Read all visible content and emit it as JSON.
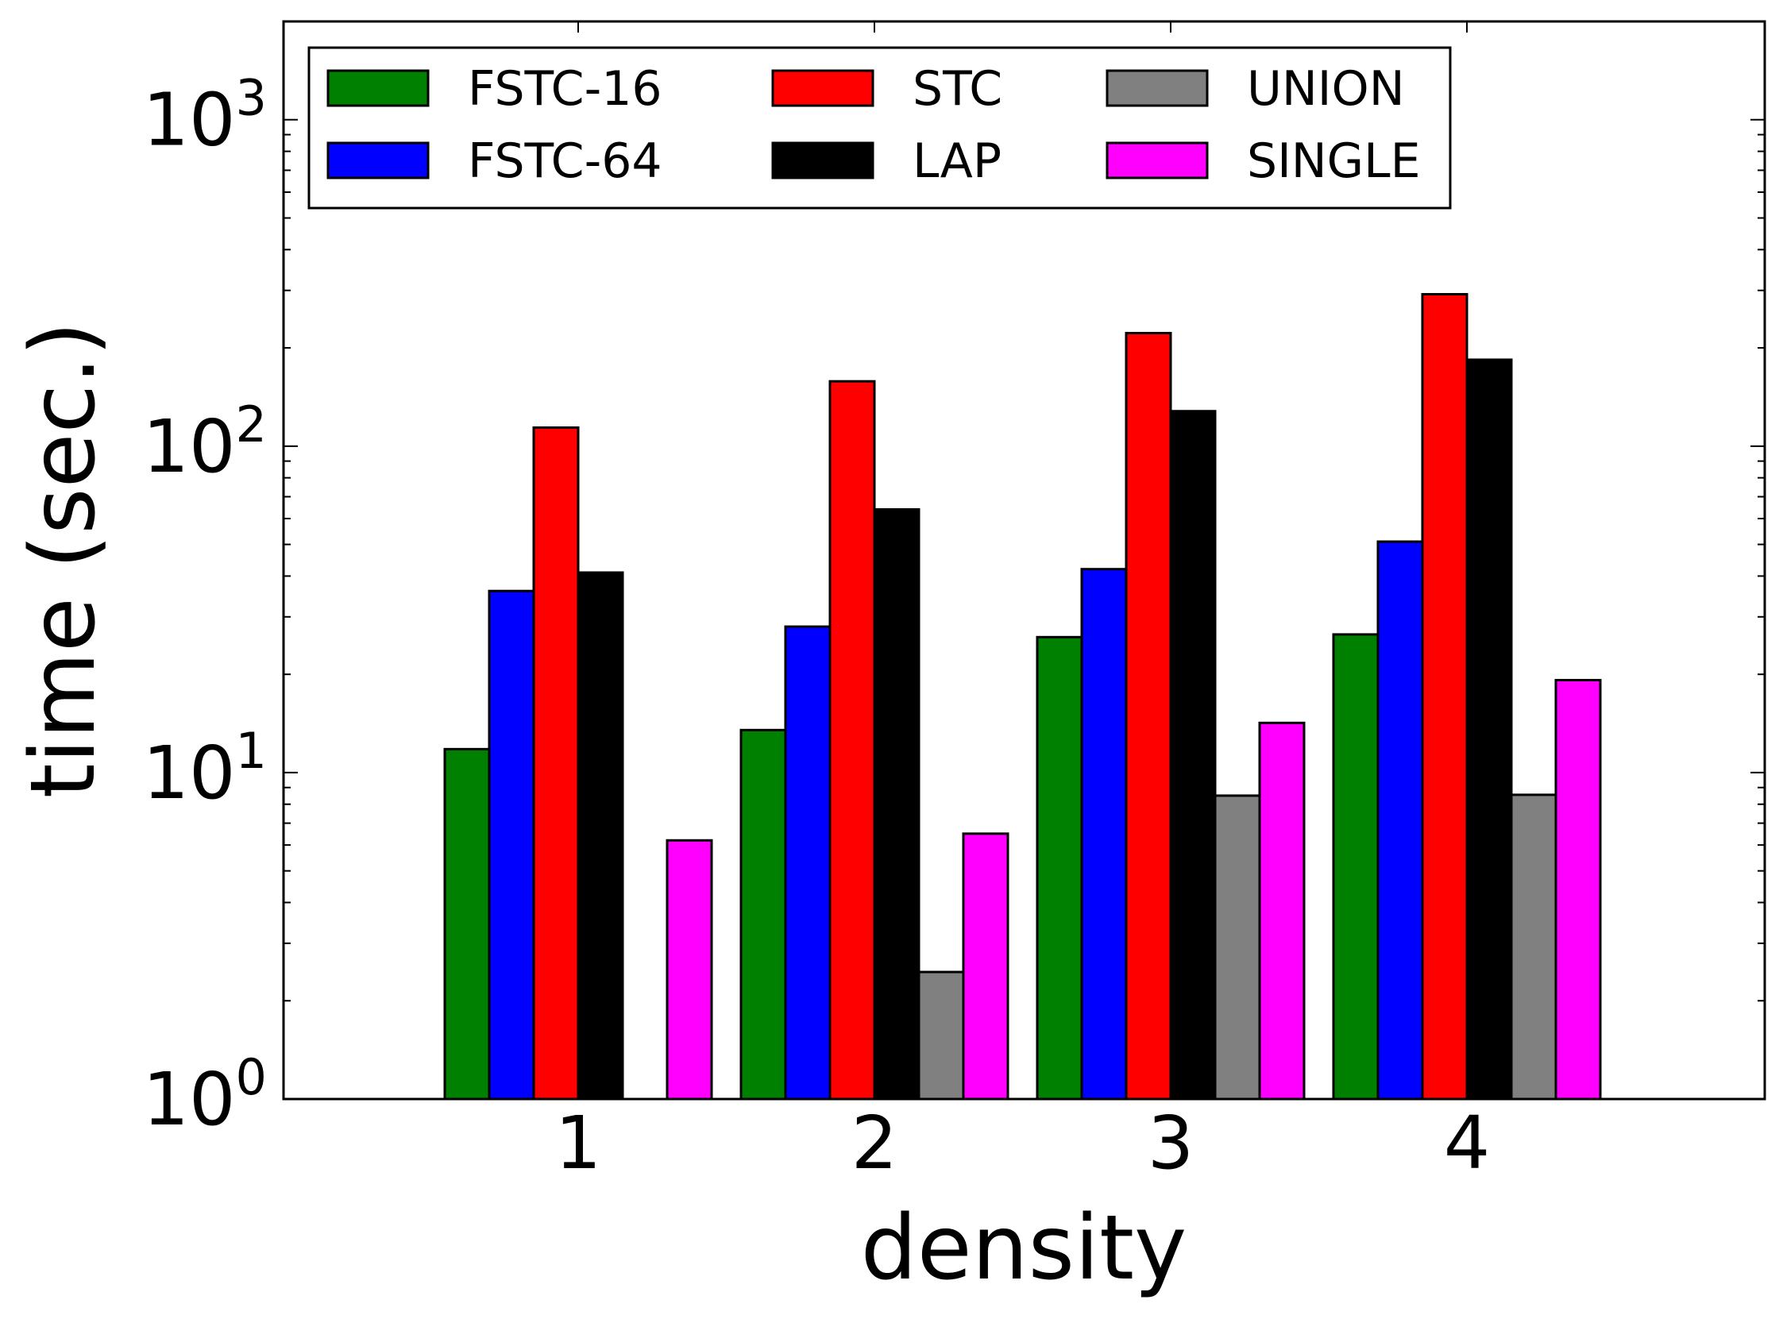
{
  "chart_data": {
    "type": "bar",
    "title": "",
    "xlabel": "density",
    "ylabel": "time (sec.)",
    "yscale": "log",
    "ylim": [
      1,
      2000
    ],
    "categories": [
      "1",
      "2",
      "3",
      "4"
    ],
    "y_ticks": [
      {
        "base": "10",
        "exp": "0",
        "value": 1
      },
      {
        "base": "10",
        "exp": "1",
        "value": 10
      },
      {
        "base": "10",
        "exp": "2",
        "value": 100
      },
      {
        "base": "10",
        "exp": "3",
        "value": 1000
      }
    ],
    "legend_position": "top-left",
    "series": [
      {
        "name": "FSTC-16",
        "color": "#008000",
        "values": [
          11.8,
          13.5,
          26,
          26.5
        ]
      },
      {
        "name": "FSTC-64",
        "color": "#0000ff",
        "values": [
          36,
          28,
          42,
          51
        ]
      },
      {
        "name": "STC",
        "color": "#ff0000",
        "values": [
          114,
          158,
          222,
          292
        ]
      },
      {
        "name": "LAP",
        "color": "#000000",
        "values": [
          41,
          64,
          128,
          184
        ]
      },
      {
        "name": "UNION",
        "color": "#808080",
        "values": [
          null,
          2.45,
          8.5,
          8.55
        ]
      },
      {
        "name": "SINGLE",
        "color": "#ff00ff",
        "values": [
          6.2,
          6.5,
          14.2,
          19.2
        ]
      }
    ]
  }
}
